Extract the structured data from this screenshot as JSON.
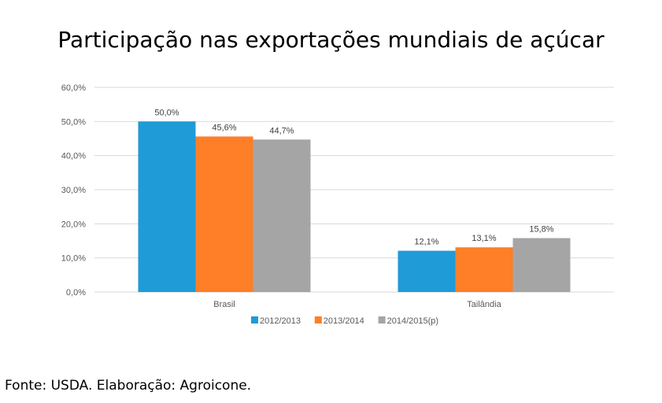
{
  "chart_data": {
    "type": "bar",
    "title": "Participação nas exportações mundiais de açúcar",
    "categories": [
      "Brasil",
      "Tailândia"
    ],
    "series": [
      {
        "name": "2012/2013",
        "color": "#1f9bd7",
        "values": [
          50.0,
          12.1
        ],
        "labels": [
          "50,0%",
          "12,1%"
        ]
      },
      {
        "name": "2013/2014",
        "color": "#fe7f27",
        "values": [
          45.6,
          13.1
        ],
        "labels": [
          "45,6%",
          "13,1%"
        ]
      },
      {
        "name": "2014/2015(p)",
        "color": "#a5a5a5",
        "values": [
          44.7,
          15.8
        ],
        "labels": [
          "44,7%",
          "15,8%"
        ]
      }
    ],
    "ylim": [
      0,
      60
    ],
    "yticks": [
      0,
      10,
      20,
      30,
      40,
      50,
      60
    ],
    "ytick_labels": [
      "0,0%",
      "10,0%",
      "20,0%",
      "30,0%",
      "40,0%",
      "50,0%",
      "60,0%"
    ],
    "xlabel": "",
    "ylabel": "",
    "grid": true,
    "legend_position": "bottom"
  },
  "source": "Fonte: USDA. Elaboração: Agroicone."
}
